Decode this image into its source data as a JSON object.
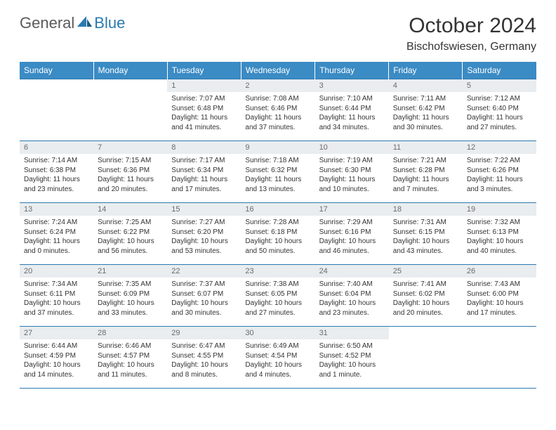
{
  "brand": {
    "general": "General",
    "blue": "Blue"
  },
  "colors": {
    "header_bg": "#3b8bc4",
    "header_text": "#ffffff",
    "rule": "#2a7ab0",
    "daynum_bg": "#e9edf0",
    "daynum_text": "#6b6b6b",
    "body_text": "#333333",
    "logo_gray": "#5a5a5a",
    "logo_blue": "#2a7ab0",
    "page_bg": "#ffffff"
  },
  "typography": {
    "month_title_pt": 30,
    "location_pt": 16,
    "weekday_pt": 12,
    "daynum_pt": 11,
    "body_pt": 10
  },
  "title": "October 2024",
  "location": "Bischofswiesen, Germany",
  "weekdays": [
    "Sunday",
    "Monday",
    "Tuesday",
    "Wednesday",
    "Thursday",
    "Friday",
    "Saturday"
  ],
  "weeks": [
    [
      {
        "n": "",
        "sr": "",
        "ss": "",
        "dl1": "",
        "dl2": ""
      },
      {
        "n": "",
        "sr": "",
        "ss": "",
        "dl1": "",
        "dl2": ""
      },
      {
        "n": "1",
        "sr": "Sunrise: 7:07 AM",
        "ss": "Sunset: 6:48 PM",
        "dl1": "Daylight: 11 hours",
        "dl2": "and 41 minutes."
      },
      {
        "n": "2",
        "sr": "Sunrise: 7:08 AM",
        "ss": "Sunset: 6:46 PM",
        "dl1": "Daylight: 11 hours",
        "dl2": "and 37 minutes."
      },
      {
        "n": "3",
        "sr": "Sunrise: 7:10 AM",
        "ss": "Sunset: 6:44 PM",
        "dl1": "Daylight: 11 hours",
        "dl2": "and 34 minutes."
      },
      {
        "n": "4",
        "sr": "Sunrise: 7:11 AM",
        "ss": "Sunset: 6:42 PM",
        "dl1": "Daylight: 11 hours",
        "dl2": "and 30 minutes."
      },
      {
        "n": "5",
        "sr": "Sunrise: 7:12 AM",
        "ss": "Sunset: 6:40 PM",
        "dl1": "Daylight: 11 hours",
        "dl2": "and 27 minutes."
      }
    ],
    [
      {
        "n": "6",
        "sr": "Sunrise: 7:14 AM",
        "ss": "Sunset: 6:38 PM",
        "dl1": "Daylight: 11 hours",
        "dl2": "and 23 minutes."
      },
      {
        "n": "7",
        "sr": "Sunrise: 7:15 AM",
        "ss": "Sunset: 6:36 PM",
        "dl1": "Daylight: 11 hours",
        "dl2": "and 20 minutes."
      },
      {
        "n": "8",
        "sr": "Sunrise: 7:17 AM",
        "ss": "Sunset: 6:34 PM",
        "dl1": "Daylight: 11 hours",
        "dl2": "and 17 minutes."
      },
      {
        "n": "9",
        "sr": "Sunrise: 7:18 AM",
        "ss": "Sunset: 6:32 PM",
        "dl1": "Daylight: 11 hours",
        "dl2": "and 13 minutes."
      },
      {
        "n": "10",
        "sr": "Sunrise: 7:19 AM",
        "ss": "Sunset: 6:30 PM",
        "dl1": "Daylight: 11 hours",
        "dl2": "and 10 minutes."
      },
      {
        "n": "11",
        "sr": "Sunrise: 7:21 AM",
        "ss": "Sunset: 6:28 PM",
        "dl1": "Daylight: 11 hours",
        "dl2": "and 7 minutes."
      },
      {
        "n": "12",
        "sr": "Sunrise: 7:22 AM",
        "ss": "Sunset: 6:26 PM",
        "dl1": "Daylight: 11 hours",
        "dl2": "and 3 minutes."
      }
    ],
    [
      {
        "n": "13",
        "sr": "Sunrise: 7:24 AM",
        "ss": "Sunset: 6:24 PM",
        "dl1": "Daylight: 11 hours",
        "dl2": "and 0 minutes."
      },
      {
        "n": "14",
        "sr": "Sunrise: 7:25 AM",
        "ss": "Sunset: 6:22 PM",
        "dl1": "Daylight: 10 hours",
        "dl2": "and 56 minutes."
      },
      {
        "n": "15",
        "sr": "Sunrise: 7:27 AM",
        "ss": "Sunset: 6:20 PM",
        "dl1": "Daylight: 10 hours",
        "dl2": "and 53 minutes."
      },
      {
        "n": "16",
        "sr": "Sunrise: 7:28 AM",
        "ss": "Sunset: 6:18 PM",
        "dl1": "Daylight: 10 hours",
        "dl2": "and 50 minutes."
      },
      {
        "n": "17",
        "sr": "Sunrise: 7:29 AM",
        "ss": "Sunset: 6:16 PM",
        "dl1": "Daylight: 10 hours",
        "dl2": "and 46 minutes."
      },
      {
        "n": "18",
        "sr": "Sunrise: 7:31 AM",
        "ss": "Sunset: 6:15 PM",
        "dl1": "Daylight: 10 hours",
        "dl2": "and 43 minutes."
      },
      {
        "n": "19",
        "sr": "Sunrise: 7:32 AM",
        "ss": "Sunset: 6:13 PM",
        "dl1": "Daylight: 10 hours",
        "dl2": "and 40 minutes."
      }
    ],
    [
      {
        "n": "20",
        "sr": "Sunrise: 7:34 AM",
        "ss": "Sunset: 6:11 PM",
        "dl1": "Daylight: 10 hours",
        "dl2": "and 37 minutes."
      },
      {
        "n": "21",
        "sr": "Sunrise: 7:35 AM",
        "ss": "Sunset: 6:09 PM",
        "dl1": "Daylight: 10 hours",
        "dl2": "and 33 minutes."
      },
      {
        "n": "22",
        "sr": "Sunrise: 7:37 AM",
        "ss": "Sunset: 6:07 PM",
        "dl1": "Daylight: 10 hours",
        "dl2": "and 30 minutes."
      },
      {
        "n": "23",
        "sr": "Sunrise: 7:38 AM",
        "ss": "Sunset: 6:05 PM",
        "dl1": "Daylight: 10 hours",
        "dl2": "and 27 minutes."
      },
      {
        "n": "24",
        "sr": "Sunrise: 7:40 AM",
        "ss": "Sunset: 6:04 PM",
        "dl1": "Daylight: 10 hours",
        "dl2": "and 23 minutes."
      },
      {
        "n": "25",
        "sr": "Sunrise: 7:41 AM",
        "ss": "Sunset: 6:02 PM",
        "dl1": "Daylight: 10 hours",
        "dl2": "and 20 minutes."
      },
      {
        "n": "26",
        "sr": "Sunrise: 7:43 AM",
        "ss": "Sunset: 6:00 PM",
        "dl1": "Daylight: 10 hours",
        "dl2": "and 17 minutes."
      }
    ],
    [
      {
        "n": "27",
        "sr": "Sunrise: 6:44 AM",
        "ss": "Sunset: 4:59 PM",
        "dl1": "Daylight: 10 hours",
        "dl2": "and 14 minutes."
      },
      {
        "n": "28",
        "sr": "Sunrise: 6:46 AM",
        "ss": "Sunset: 4:57 PM",
        "dl1": "Daylight: 10 hours",
        "dl2": "and 11 minutes."
      },
      {
        "n": "29",
        "sr": "Sunrise: 6:47 AM",
        "ss": "Sunset: 4:55 PM",
        "dl1": "Daylight: 10 hours",
        "dl2": "and 8 minutes."
      },
      {
        "n": "30",
        "sr": "Sunrise: 6:49 AM",
        "ss": "Sunset: 4:54 PM",
        "dl1": "Daylight: 10 hours",
        "dl2": "and 4 minutes."
      },
      {
        "n": "31",
        "sr": "Sunrise: 6:50 AM",
        "ss": "Sunset: 4:52 PM",
        "dl1": "Daylight: 10 hours",
        "dl2": "and 1 minute."
      },
      {
        "n": "",
        "sr": "",
        "ss": "",
        "dl1": "",
        "dl2": ""
      },
      {
        "n": "",
        "sr": "",
        "ss": "",
        "dl1": "",
        "dl2": ""
      }
    ]
  ]
}
